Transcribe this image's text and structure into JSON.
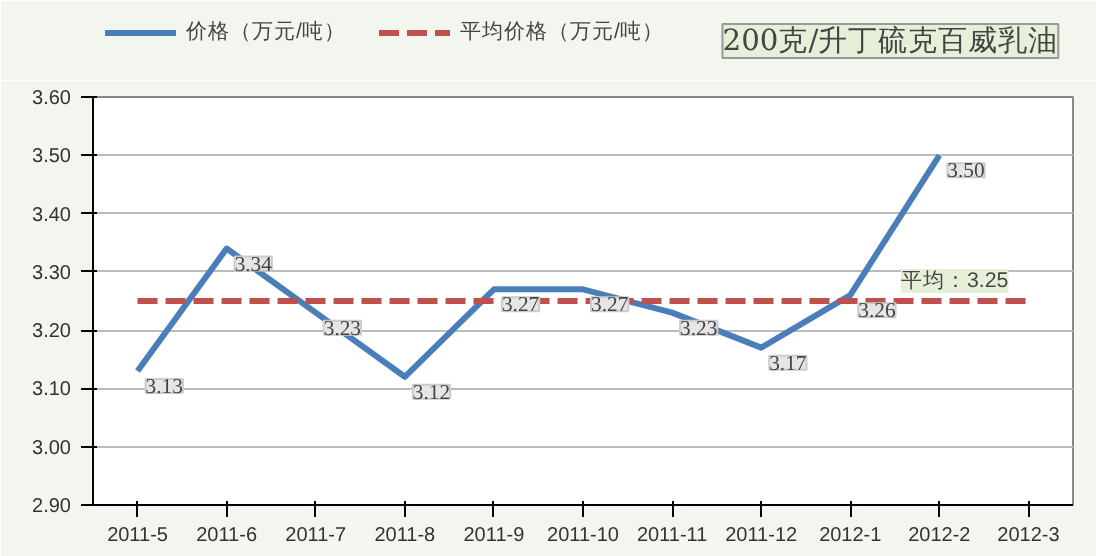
{
  "chart_data": {
    "type": "line",
    "title": "200克/升丁硫克百威乳油",
    "categories": [
      "2011-5",
      "2011-6",
      "2011-7",
      "2011-8",
      "2011-9",
      "2011-10",
      "2011-11",
      "2011-12",
      "2012-1",
      "2012-2",
      "2012-3"
    ],
    "series": [
      {
        "name": "价格（万元/吨）",
        "color": "#4a7ebb",
        "line_style": "solid",
        "values": [
          3.13,
          3.34,
          3.23,
          3.12,
          3.27,
          3.27,
          3.23,
          3.17,
          3.26,
          3.5,
          null
        ],
        "value_labels": [
          "3.13",
          "3.34",
          "3.23",
          "3.12",
          "3.27",
          "3.27",
          "3.23",
          "3.17",
          "3.26",
          "3.50",
          null
        ]
      },
      {
        "name": "平均价格（万元/吨）",
        "color": "#c0504d",
        "line_style": "dashed",
        "values": [
          3.25,
          3.25,
          3.25,
          3.25,
          3.25,
          3.25,
          3.25,
          3.25,
          3.25,
          3.25,
          3.25
        ]
      }
    ],
    "ylim": [
      2.9,
      3.6
    ],
    "yticks": [
      {
        "value": 2.9,
        "label": "2.90"
      },
      {
        "value": 3.0,
        "label": "3.00"
      },
      {
        "value": 3.1,
        "label": "3.10"
      },
      {
        "value": 3.2,
        "label": "3.20"
      },
      {
        "value": 3.3,
        "label": "3.30"
      },
      {
        "value": 3.4,
        "label": "3.40"
      },
      {
        "value": 3.5,
        "label": "3.50"
      },
      {
        "value": 3.6,
        "label": "3.60"
      }
    ],
    "grid": "y",
    "legend": "top left",
    "marker": "none",
    "annotations": [
      {
        "text": "平均：3.25",
        "x": "2012-3",
        "y": 3.25
      }
    ]
  }
}
